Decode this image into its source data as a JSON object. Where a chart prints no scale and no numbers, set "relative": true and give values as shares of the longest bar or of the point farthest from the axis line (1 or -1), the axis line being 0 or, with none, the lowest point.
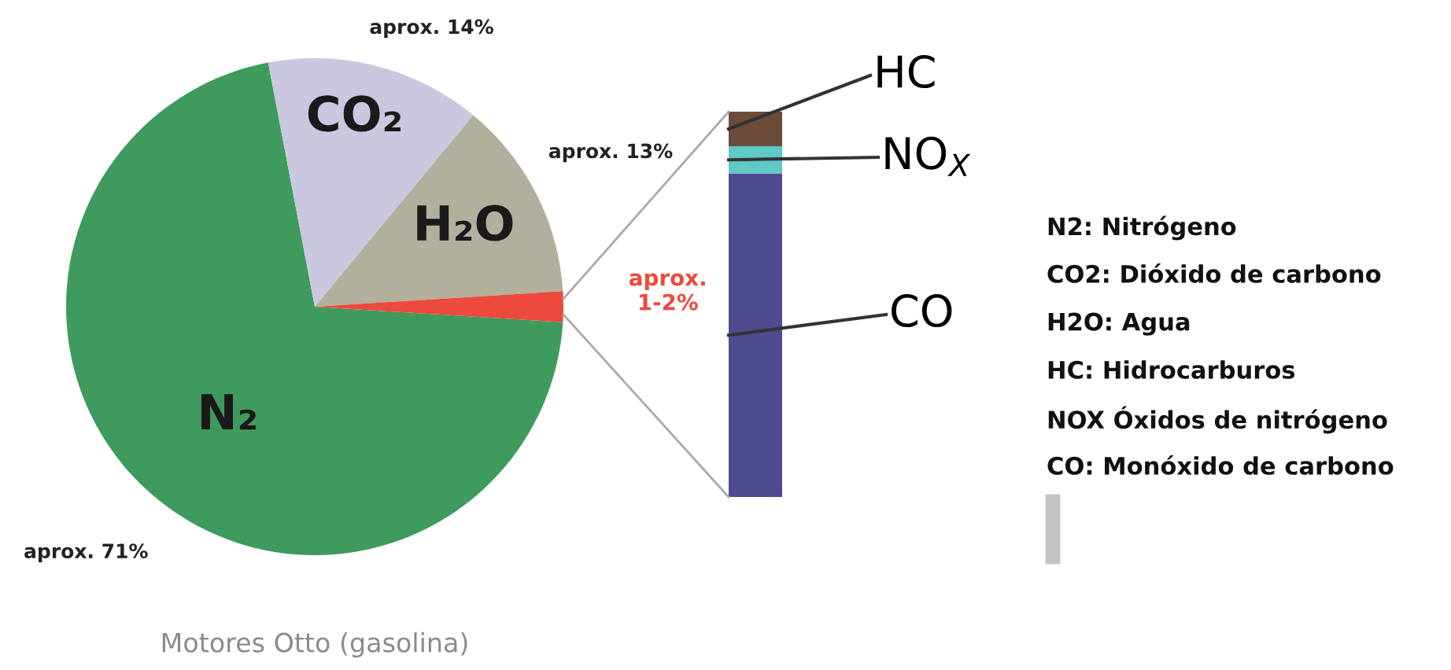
{
  "chart_data": [
    {
      "type": "pie",
      "categories": [
        "N₂",
        "CO₂",
        "H₂O",
        null
      ],
      "values": [
        71,
        14,
        13,
        2
      ],
      "colors": [
        "#3f9a5e",
        "#c9c8df",
        "#b2b09c",
        "#ec4a3c"
      ],
      "value_labels": [
        "aprox. 71%",
        "aprox. 14%",
        "aprox. 13%",
        null
      ],
      "annotations": [
        "Motores Otto (gasolina)",
        "aprox.\n1-2%"
      ]
    },
    {
      "type": "bar",
      "stacked": true,
      "relative": true,
      "categories": [
        null
      ],
      "series": [
        {
          "name": "CO",
          "color": "#4f4b91",
          "values": [
            0.84
          ]
        },
        {
          "name": "NO$_{X}$",
          "color": "#5fc9c6",
          "values": [
            0.07
          ]
        },
        {
          "name": "HC",
          "color": "#6b4c3b",
          "values": [
            0.09
          ]
        }
      ]
    },
    {
      "type": "other",
      "annotations": [
        "N2: Nitrógeno",
        "CO2: Dióxido de carbono",
        "H2O: Agua",
        "HC: Hidrocarburos",
        "NOX Óxidos de nitrógeno",
        "CO: Monóxido de carbono"
      ]
    }
  ]
}
